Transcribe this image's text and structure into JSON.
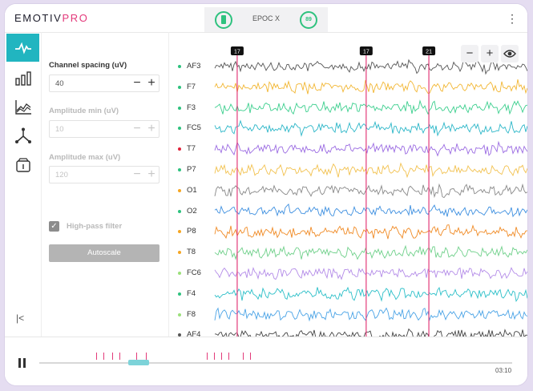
{
  "app": {
    "brand_main": "EMOTIV",
    "brand_pro": "PRO"
  },
  "device": {
    "name": "EPOC X",
    "quality": "89",
    "status_color": "#2ec27e"
  },
  "toolbar": {
    "menu_glyph": "⋮"
  },
  "nav": {
    "items": [
      "eeg-raw",
      "band-power",
      "performance-metrics",
      "motion",
      "markers"
    ],
    "active": "eeg-raw",
    "collapse_glyph": "|<"
  },
  "settings": {
    "channel_spacing": {
      "label": "Channel spacing (uV)",
      "value": "40"
    },
    "amplitude_min": {
      "label": "Amplitude min (uV)",
      "value": "10"
    },
    "amplitude_max": {
      "label": "Amplitude max (uV)",
      "value": "120"
    },
    "high_pass": {
      "label": "High-pass filter",
      "checked": true
    },
    "autoscale_label": "Autoscale",
    "minus": "−",
    "plus": "+"
  },
  "eeg": {
    "channels": [
      {
        "name": "AF3",
        "dot": "#2ec27e",
        "color": "#555555"
      },
      {
        "name": "F7",
        "dot": "#2ec27e",
        "color": "#f2b632"
      },
      {
        "name": "F3",
        "dot": "#2ec27e",
        "color": "#3ccf8e"
      },
      {
        "name": "FC5",
        "dot": "#2ec27e",
        "color": "#2bb6c8"
      },
      {
        "name": "T7",
        "dot": "#e0223a",
        "color": "#9b6be2"
      },
      {
        "name": "P7",
        "dot": "#2ec27e",
        "color": "#f2c14e"
      },
      {
        "name": "O1",
        "dot": "#f5a623",
        "color": "#888888"
      },
      {
        "name": "O2",
        "dot": "#2ec27e",
        "color": "#3d8fe0"
      },
      {
        "name": "P8",
        "dot": "#f5a623",
        "color": "#f08a24"
      },
      {
        "name": "T8",
        "dot": "#f5a623",
        "color": "#6fd08a"
      },
      {
        "name": "FC6",
        "dot": "#9be07a",
        "color": "#b48ce8"
      },
      {
        "name": "F4",
        "dot": "#2ec27e",
        "color": "#2bbfc8"
      },
      {
        "name": "F8",
        "dot": "#9be07a",
        "color": "#4aa3e6"
      },
      {
        "name": "AF4",
        "dot": "#555555",
        "color": "#444444"
      }
    ],
    "markers": [
      {
        "label": "17",
        "pos": 0.19
      },
      {
        "label": "17",
        "pos": 0.55
      },
      {
        "label": "21",
        "pos": 0.725
      }
    ],
    "controls": {
      "zoom_out": "−",
      "zoom_in": "+"
    },
    "marker_color": "#e33b7a"
  },
  "footer": {
    "time": "03:10",
    "progress": 0.21,
    "timeline_markers": [
      0.12,
      0.135,
      0.155,
      0.17,
      0.205,
      0.225,
      0.355,
      0.37,
      0.385,
      0.4,
      0.43,
      0.445
    ]
  }
}
